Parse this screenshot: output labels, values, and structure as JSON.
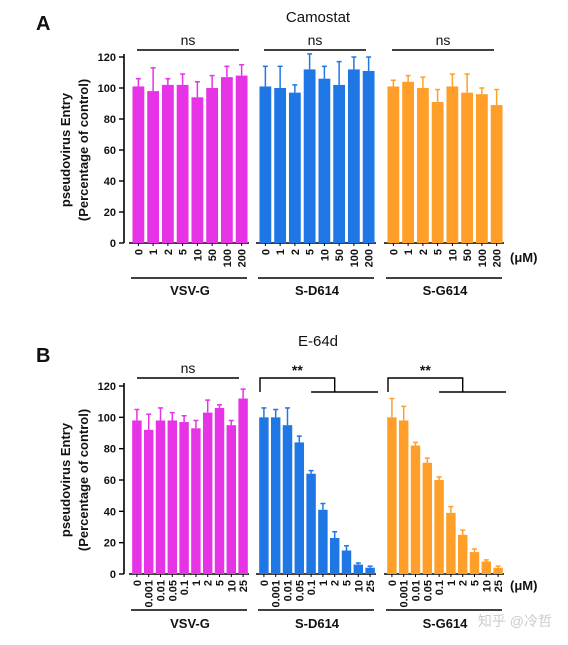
{
  "colors": {
    "vsv": "#e633e6",
    "d614": "#1f77e6",
    "g614": "#ff9f2a",
    "axis": "#000000"
  },
  "watermark": "知乎 @冷哲",
  "chart_data": [
    {
      "panel_label": "A",
      "title": "Camostat",
      "type": "bar",
      "ylabel_lines": [
        "pseudovirus Entry",
        "(Percentage of control)"
      ],
      "ylim": [
        0,
        120
      ],
      "yticks": [
        0,
        20,
        40,
        60,
        80,
        100,
        120
      ],
      "unit": "(μM)",
      "groups": [
        {
          "name": "VSV-G",
          "color_key": "vsv",
          "categories": [
            "0",
            "1",
            "2",
            "5",
            "10",
            "50",
            "100",
            "200"
          ],
          "values": [
            101,
            98,
            102,
            102,
            94,
            100,
            107,
            108
          ],
          "errors": [
            5,
            15,
            4,
            7,
            10,
            8,
            7,
            7
          ],
          "significance": [
            {
              "label": "ns",
              "type": "span"
            }
          ]
        },
        {
          "name": "S-D614",
          "color_key": "d614",
          "categories": [
            "0",
            "1",
            "2",
            "5",
            "10",
            "50",
            "100",
            "200"
          ],
          "values": [
            101,
            100,
            97,
            112,
            106,
            102,
            112,
            111
          ],
          "errors": [
            13,
            14,
            5,
            10,
            8,
            15,
            8,
            9
          ],
          "significance": [
            {
              "label": "ns",
              "type": "span"
            }
          ]
        },
        {
          "name": "S-G614",
          "color_key": "g614",
          "categories": [
            "0",
            "1",
            "2",
            "5",
            "10",
            "50",
            "100",
            "200"
          ],
          "values": [
            101,
            104,
            100,
            91,
            101,
            97,
            96,
            89
          ],
          "errors": [
            4,
            4,
            7,
            8,
            8,
            12,
            4,
            10
          ],
          "significance": [
            {
              "label": "ns",
              "type": "span"
            }
          ]
        }
      ]
    },
    {
      "panel_label": "B",
      "title": "E-64d",
      "type": "bar",
      "ylabel_lines": [
        "pseudovirus Entry",
        "(Percentage of control)"
      ],
      "ylim": [
        0,
        120
      ],
      "yticks": [
        0,
        20,
        40,
        60,
        80,
        100,
        120
      ],
      "unit": "(μM)",
      "groups": [
        {
          "name": "VSV-G",
          "color_key": "vsv",
          "categories": [
            "0",
            "0.001",
            "0.01",
            "0.05",
            "0.1",
            "1",
            "2",
            "5",
            "10",
            "25"
          ],
          "values": [
            98,
            92,
            98,
            98,
            97,
            93,
            103,
            106,
            95,
            112
          ],
          "errors": [
            7,
            10,
            8,
            5,
            4,
            5,
            8,
            2,
            3,
            6
          ],
          "significance": [
            {
              "label": "ns",
              "type": "span"
            }
          ]
        },
        {
          "name": "S-D614",
          "color_key": "d614",
          "categories": [
            "0",
            "0.001",
            "0.01",
            "0.05",
            "0.1",
            "1",
            "2",
            "5",
            "10",
            "25"
          ],
          "values": [
            100,
            100,
            95,
            84,
            64,
            41,
            23,
            15,
            6,
            4
          ],
          "errors": [
            6,
            5,
            11,
            4,
            2,
            4,
            4,
            3,
            1,
            1
          ],
          "significance": [
            {
              "label": "**",
              "type": "bracket"
            }
          ]
        },
        {
          "name": "S-G614",
          "color_key": "g614",
          "categories": [
            "0",
            "0.001",
            "0.01",
            "0.05",
            "0.1",
            "1",
            "2",
            "5",
            "10",
            "25"
          ],
          "values": [
            100,
            98,
            82,
            71,
            60,
            39,
            25,
            14,
            8,
            4
          ],
          "errors": [
            12,
            9,
            2,
            3,
            2,
            4,
            3,
            2,
            1,
            1
          ],
          "significance": [
            {
              "label": "**",
              "type": "bracket"
            }
          ]
        }
      ]
    }
  ]
}
